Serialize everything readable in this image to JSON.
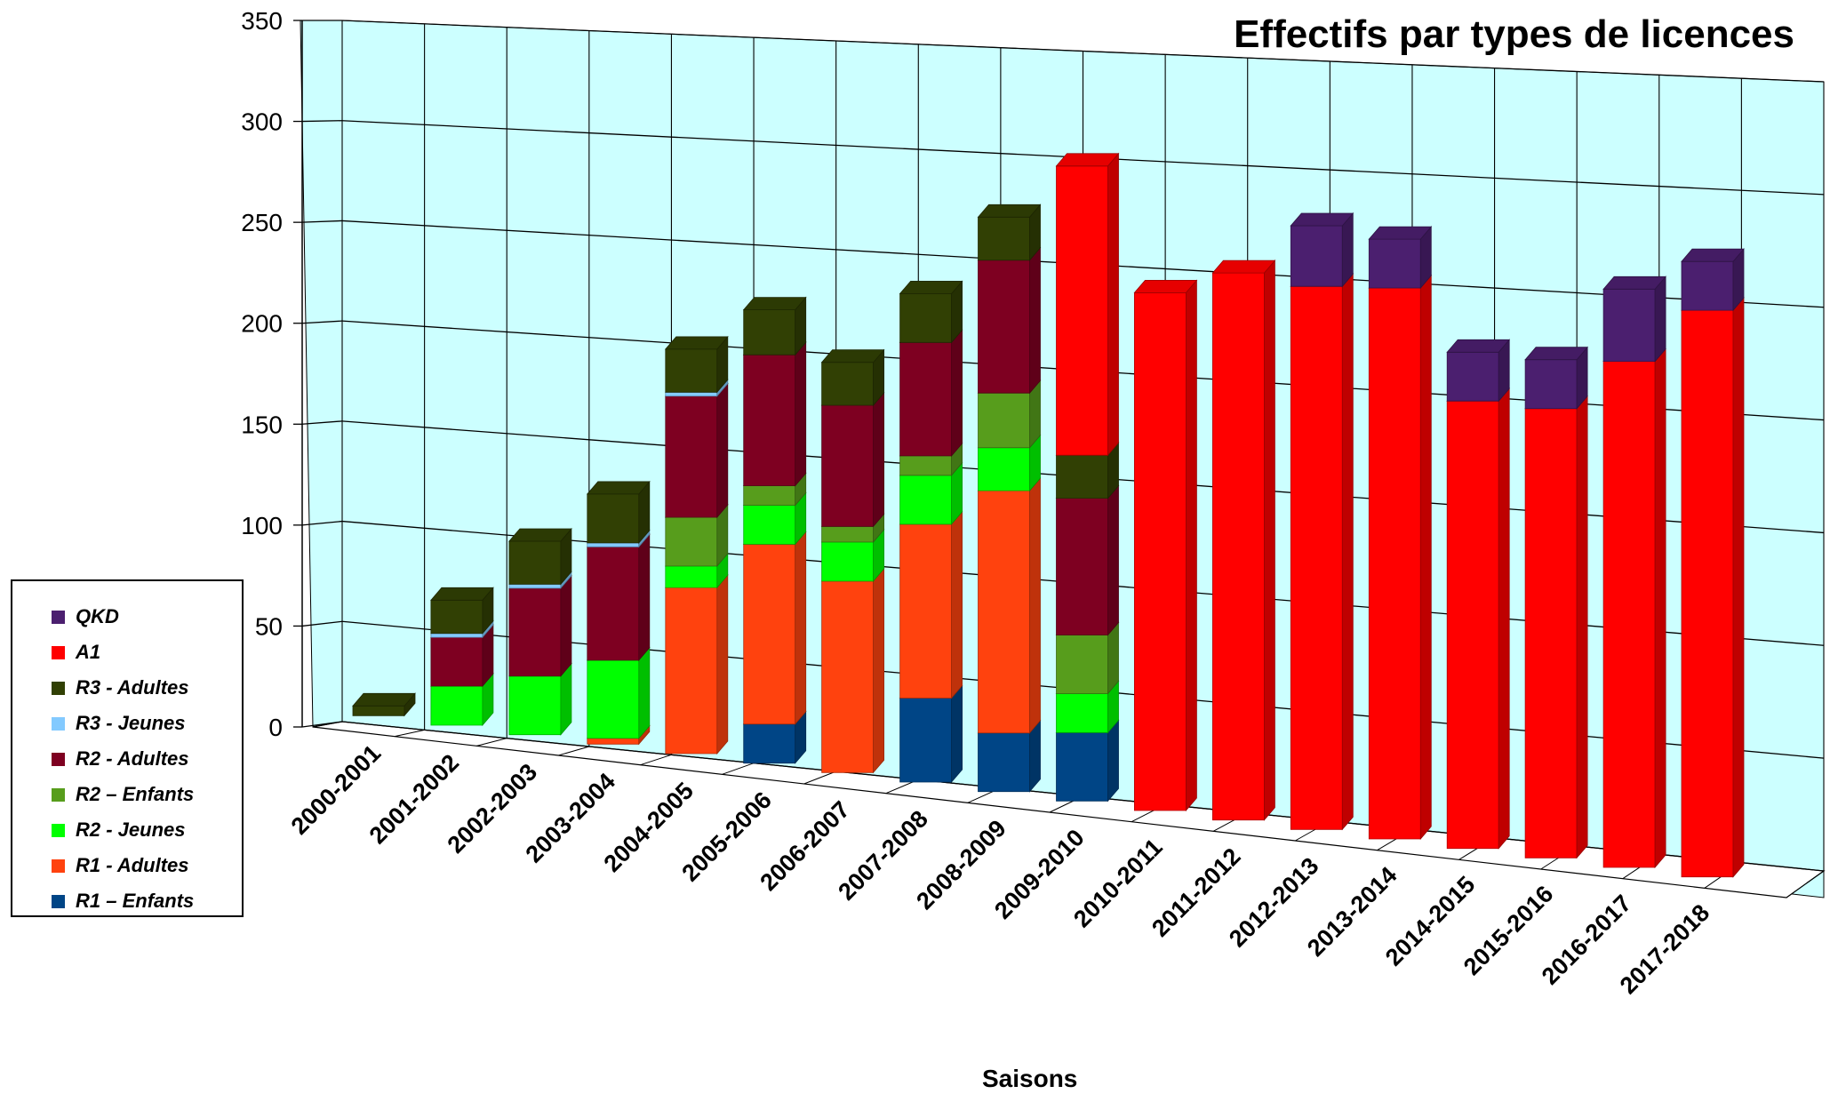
{
  "chart_data": {
    "type": "bar",
    "stacked": true,
    "three_d": true,
    "title": "Effectifs par types de licences",
    "xlabel": "Saisons",
    "ylabel": "",
    "ylim": [
      0,
      350
    ],
    "yticks": [
      0,
      50,
      100,
      150,
      200,
      250,
      300,
      350
    ],
    "grid": true,
    "legend_position": "left",
    "categories": [
      "2000-2001",
      "2001-2002",
      "2002-2003",
      "2003-2004",
      "2004-2005",
      "2005-2006",
      "2006-2007",
      "2007-2008",
      "2008-2009",
      "2009-2010",
      "2010-2011",
      "2011-2012",
      "2012-2013",
      "2013-2014",
      "2014-2015",
      "2015-2016",
      "2016-2017",
      "2017-2018"
    ],
    "series": [
      {
        "name": "R1 – Enfants",
        "color": "#004586",
        "values": [
          0,
          0,
          0,
          0,
          0,
          20,
          0,
          43,
          30,
          35,
          0,
          0,
          0,
          0,
          0,
          0,
          0,
          0
        ]
      },
      {
        "name": "R1 - Adultes",
        "color": "#ff420e",
        "values": [
          0,
          0,
          0,
          3,
          85,
          92,
          98,
          89,
          124,
          0,
          0,
          0,
          0,
          0,
          0,
          0,
          0,
          0
        ]
      },
      {
        "name": "R2 - Jeunes",
        "color": "#00ff00",
        "values": [
          0,
          20,
          30,
          40,
          11,
          20,
          20,
          25,
          22,
          20,
          0,
          0,
          0,
          0,
          0,
          0,
          0,
          0
        ]
      },
      {
        "name": "R2 – Enfants",
        "color": "#579d1c",
        "values": [
          0,
          0,
          0,
          0,
          25,
          10,
          8,
          10,
          28,
          30,
          0,
          0,
          0,
          0,
          0,
          0,
          0,
          0
        ]
      },
      {
        "name": "R2 - Adultes",
        "color": "#7e0021",
        "values": [
          0,
          25,
          45,
          58,
          62,
          67,
          62,
          58,
          68,
          70,
          0,
          0,
          0,
          0,
          0,
          0,
          0,
          0
        ]
      },
      {
        "name": "R3 - Jeunes",
        "color": "#83caff",
        "values": [
          0,
          2,
          2,
          2,
          2,
          0,
          0,
          0,
          0,
          0,
          0,
          0,
          0,
          0,
          0,
          0,
          0,
          0
        ]
      },
      {
        "name": "R3 - Adultes",
        "color": "#314004",
        "values": [
          5,
          17,
          22,
          25,
          22,
          23,
          22,
          25,
          22,
          22,
          0,
          0,
          0,
          0,
          0,
          0,
          0,
          0
        ]
      },
      {
        "name": "A1",
        "color": "#ff0000",
        "values": [
          0,
          0,
          0,
          0,
          0,
          0,
          0,
          0,
          0,
          148,
          265,
          280,
          278,
          282,
          229,
          230,
          259,
          290
        ]
      },
      {
        "name": "QKD",
        "color": "#4b1f6f",
        "values": [
          0,
          0,
          0,
          0,
          0,
          0,
          0,
          0,
          0,
          0,
          0,
          0,
          31,
          25,
          25,
          25,
          37,
          25
        ]
      }
    ]
  },
  "colors": {
    "back_wall": "#ccffff",
    "floor": "#ffffff",
    "gridline": "#000000"
  }
}
